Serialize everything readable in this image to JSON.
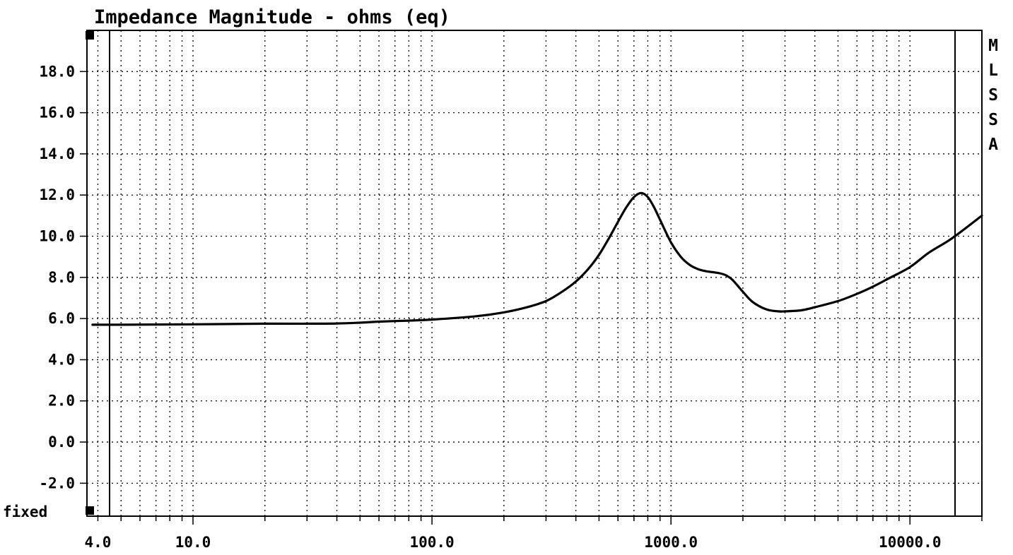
{
  "chart_data": {
    "type": "line",
    "title": "Impedance Magnitude - ohms (eq)",
    "side_label": [
      "M",
      "L",
      "S",
      "S",
      "A"
    ],
    "corner_label": "fixed",
    "x_scale": "log",
    "xlim": [
      3.6,
      20000
    ],
    "ylim": [
      -3.6,
      20
    ],
    "x_ticks": [
      {
        "value": 4,
        "label": "4.0"
      },
      {
        "value": 10,
        "label": "10.0"
      },
      {
        "value": 100,
        "label": "100.0"
      },
      {
        "value": 1000,
        "label": "1000.0"
      },
      {
        "value": 10000,
        "label": "10000.0"
      }
    ],
    "y_ticks": [
      {
        "value": 18,
        "label": "18.0"
      },
      {
        "value": 16,
        "label": "16.0"
      },
      {
        "value": 14,
        "label": "14.0"
      },
      {
        "value": 12,
        "label": "12.0"
      },
      {
        "value": 10,
        "label": "10.0"
      },
      {
        "value": 8,
        "label": "8.0"
      },
      {
        "value": 6,
        "label": "6.0"
      },
      {
        "value": 4,
        "label": "4.0"
      },
      {
        "value": 2,
        "label": "2.0"
      },
      {
        "value": 0,
        "label": "0.0"
      },
      {
        "value": -2,
        "label": "-2.0"
      }
    ],
    "grid": true,
    "series": [
      {
        "x": [
          3.8,
          5,
          10,
          20,
          30,
          40,
          50,
          60,
          80,
          100,
          150,
          200,
          250,
          300,
          350,
          400,
          450,
          500,
          550,
          600,
          650,
          700,
          750,
          800,
          850,
          900,
          1000,
          1100,
          1200,
          1300,
          1400,
          1500,
          1600,
          1700,
          1800,
          1900,
          2000,
          2200,
          2500,
          2800,
          3000,
          3500,
          4000,
          5000,
          6000,
          7000,
          8000,
          10000,
          12000,
          15000,
          20000
        ],
        "y": [
          5.7,
          5.7,
          5.72,
          5.75,
          5.75,
          5.76,
          5.8,
          5.85,
          5.9,
          5.95,
          6.1,
          6.3,
          6.55,
          6.85,
          7.3,
          7.8,
          8.4,
          9.1,
          9.9,
          10.7,
          11.4,
          11.9,
          12.1,
          11.9,
          11.4,
          10.8,
          9.7,
          9.0,
          8.6,
          8.4,
          8.3,
          8.25,
          8.2,
          8.1,
          7.9,
          7.6,
          7.3,
          6.8,
          6.45,
          6.35,
          6.35,
          6.4,
          6.55,
          6.85,
          7.2,
          7.55,
          7.9,
          8.5,
          9.2,
          9.9,
          11.0
        ]
      }
    ]
  }
}
